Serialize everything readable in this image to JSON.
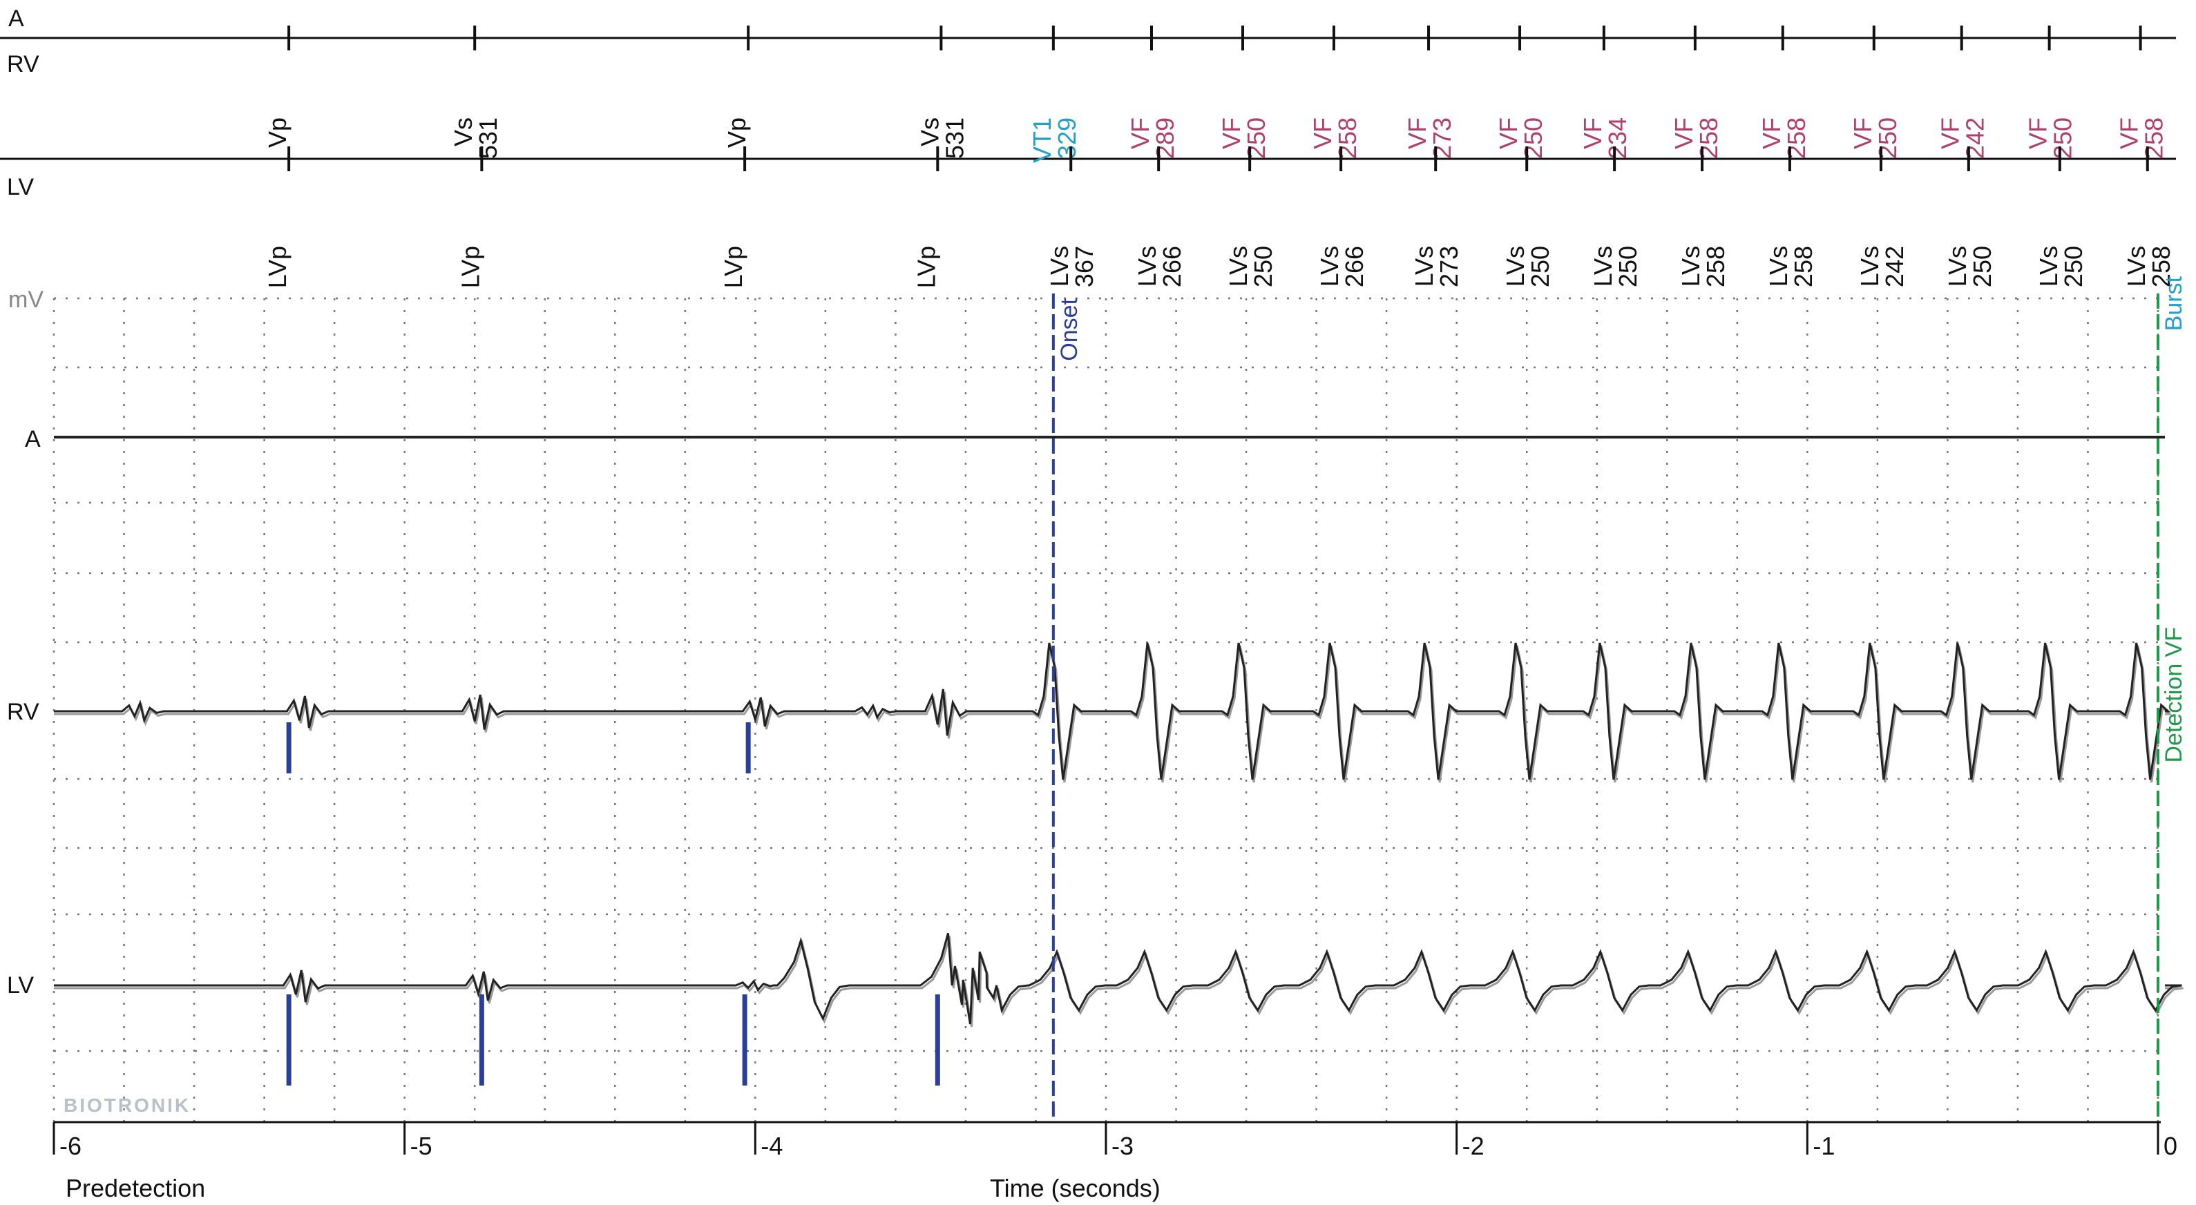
{
  "chart_data": {
    "type": "line",
    "title": "",
    "xlabel": "Time (seconds)",
    "ylabel": "mV",
    "section_label": "Predetection",
    "watermark": "BIOTRONIK",
    "x_range": [
      -6,
      0
    ],
    "x_ticks": [
      {
        "value": -6,
        "label": "-6"
      },
      {
        "value": -5,
        "label": "-5"
      },
      {
        "value": -4,
        "label": "-4"
      },
      {
        "value": -3,
        "label": "-3"
      },
      {
        "value": -2,
        "label": "-2"
      },
      {
        "value": -1,
        "label": "-1"
      },
      {
        "value": 0,
        "label": "0"
      }
    ],
    "grid": true,
    "channels": [
      {
        "name": "A"
      },
      {
        "name": "RV"
      },
      {
        "name": "LV"
      }
    ],
    "channel_lines": [
      {
        "name": "A"
      },
      {
        "name": "RV"
      },
      {
        "name": "LV"
      }
    ],
    "rv_markers": [
      {
        "t": -5.33,
        "label": "Vp",
        "interval": "",
        "type": "paced"
      },
      {
        "t": -4.8,
        "label": "Vs",
        "interval": "531",
        "type": "sensed"
      },
      {
        "t": -4.02,
        "label": "Vp",
        "interval": "",
        "type": "paced"
      },
      {
        "t": -3.47,
        "label": "Vs",
        "interval": "531",
        "type": "sensed"
      },
      {
        "t": -3.15,
        "label": "VT1",
        "interval": "329",
        "type": "vt"
      },
      {
        "t": -2.87,
        "label": "VF",
        "interval": "289",
        "type": "vf"
      },
      {
        "t": -2.61,
        "label": "VF",
        "interval": "250",
        "type": "vf"
      },
      {
        "t": -2.35,
        "label": "VF",
        "interval": "258",
        "type": "vf"
      },
      {
        "t": -2.08,
        "label": "VF",
        "interval": "273",
        "type": "vf"
      },
      {
        "t": -1.82,
        "label": "VF",
        "interval": "250",
        "type": "vf"
      },
      {
        "t": -1.58,
        "label": "VF",
        "interval": "234",
        "type": "vf"
      },
      {
        "t": -1.32,
        "label": "VF",
        "interval": "258",
        "type": "vf"
      },
      {
        "t": -1.07,
        "label": "VF",
        "interval": "258",
        "type": "vf"
      },
      {
        "t": -0.81,
        "label": "VF",
        "interval": "250",
        "type": "vf"
      },
      {
        "t": -0.56,
        "label": "VF",
        "interval": "242",
        "type": "vf"
      },
      {
        "t": -0.31,
        "label": "VF",
        "interval": "250",
        "type": "vf"
      },
      {
        "t": -0.05,
        "label": "VF",
        "interval": "258",
        "type": "vf"
      }
    ],
    "lv_markers": [
      {
        "t": -5.33,
        "label": "LVp",
        "interval": "",
        "type": "paced"
      },
      {
        "t": -4.78,
        "label": "LVp",
        "interval": "",
        "type": "paced"
      },
      {
        "t": -4.03,
        "label": "LVp",
        "interval": "",
        "type": "paced"
      },
      {
        "t": -3.48,
        "label": "LVp",
        "interval": "",
        "type": "paced"
      },
      {
        "t": -3.1,
        "label": "LVs",
        "interval": "367",
        "type": "sensed"
      },
      {
        "t": -2.85,
        "label": "LVs",
        "interval": "266",
        "type": "sensed"
      },
      {
        "t": -2.59,
        "label": "LVs",
        "interval": "250",
        "type": "sensed"
      },
      {
        "t": -2.33,
        "label": "LVs",
        "interval": "266",
        "type": "sensed"
      },
      {
        "t": -2.06,
        "label": "LVs",
        "interval": "273",
        "type": "sensed"
      },
      {
        "t": -1.8,
        "label": "LVs",
        "interval": "250",
        "type": "sensed"
      },
      {
        "t": -1.55,
        "label": "LVs",
        "interval": "250",
        "type": "sensed"
      },
      {
        "t": -1.3,
        "label": "LVs",
        "interval": "258",
        "type": "sensed"
      },
      {
        "t": -1.05,
        "label": "LVs",
        "interval": "258",
        "type": "sensed"
      },
      {
        "t": -0.79,
        "label": "LVs",
        "interval": "242",
        "type": "sensed"
      },
      {
        "t": -0.54,
        "label": "LVs",
        "interval": "250",
        "type": "sensed"
      },
      {
        "t": -0.28,
        "label": "LVs",
        "interval": "250",
        "type": "sensed"
      },
      {
        "t": -0.03,
        "label": "LVs",
        "interval": "258",
        "type": "sensed"
      }
    ],
    "pacing_spikes": {
      "rv": [
        -5.33,
        -4.02
      ],
      "lv": [
        -5.33,
        -4.78,
        -4.03,
        -3.48
      ]
    },
    "annotations": [
      {
        "t": -3.15,
        "label": "Onset",
        "color": "#2b3f94"
      },
      {
        "t": 0.0,
        "label": "Burst",
        "color": "#22a0c8"
      },
      {
        "t": 0.0,
        "label": "Detection VF",
        "color": "#1f9a4a"
      }
    ],
    "colors": {
      "trace": "#222222",
      "trace_echo": "#9a9a9a",
      "grid": "#777777",
      "paced_spike": "#2b3f94",
      "vt_label": "#22a0c8",
      "vf_label": "#b0406a",
      "onset_line": "#2b3f94",
      "detection_line": "#1f9a4a",
      "watermark": "#b8c1c8",
      "ylabel": "#888888"
    }
  }
}
